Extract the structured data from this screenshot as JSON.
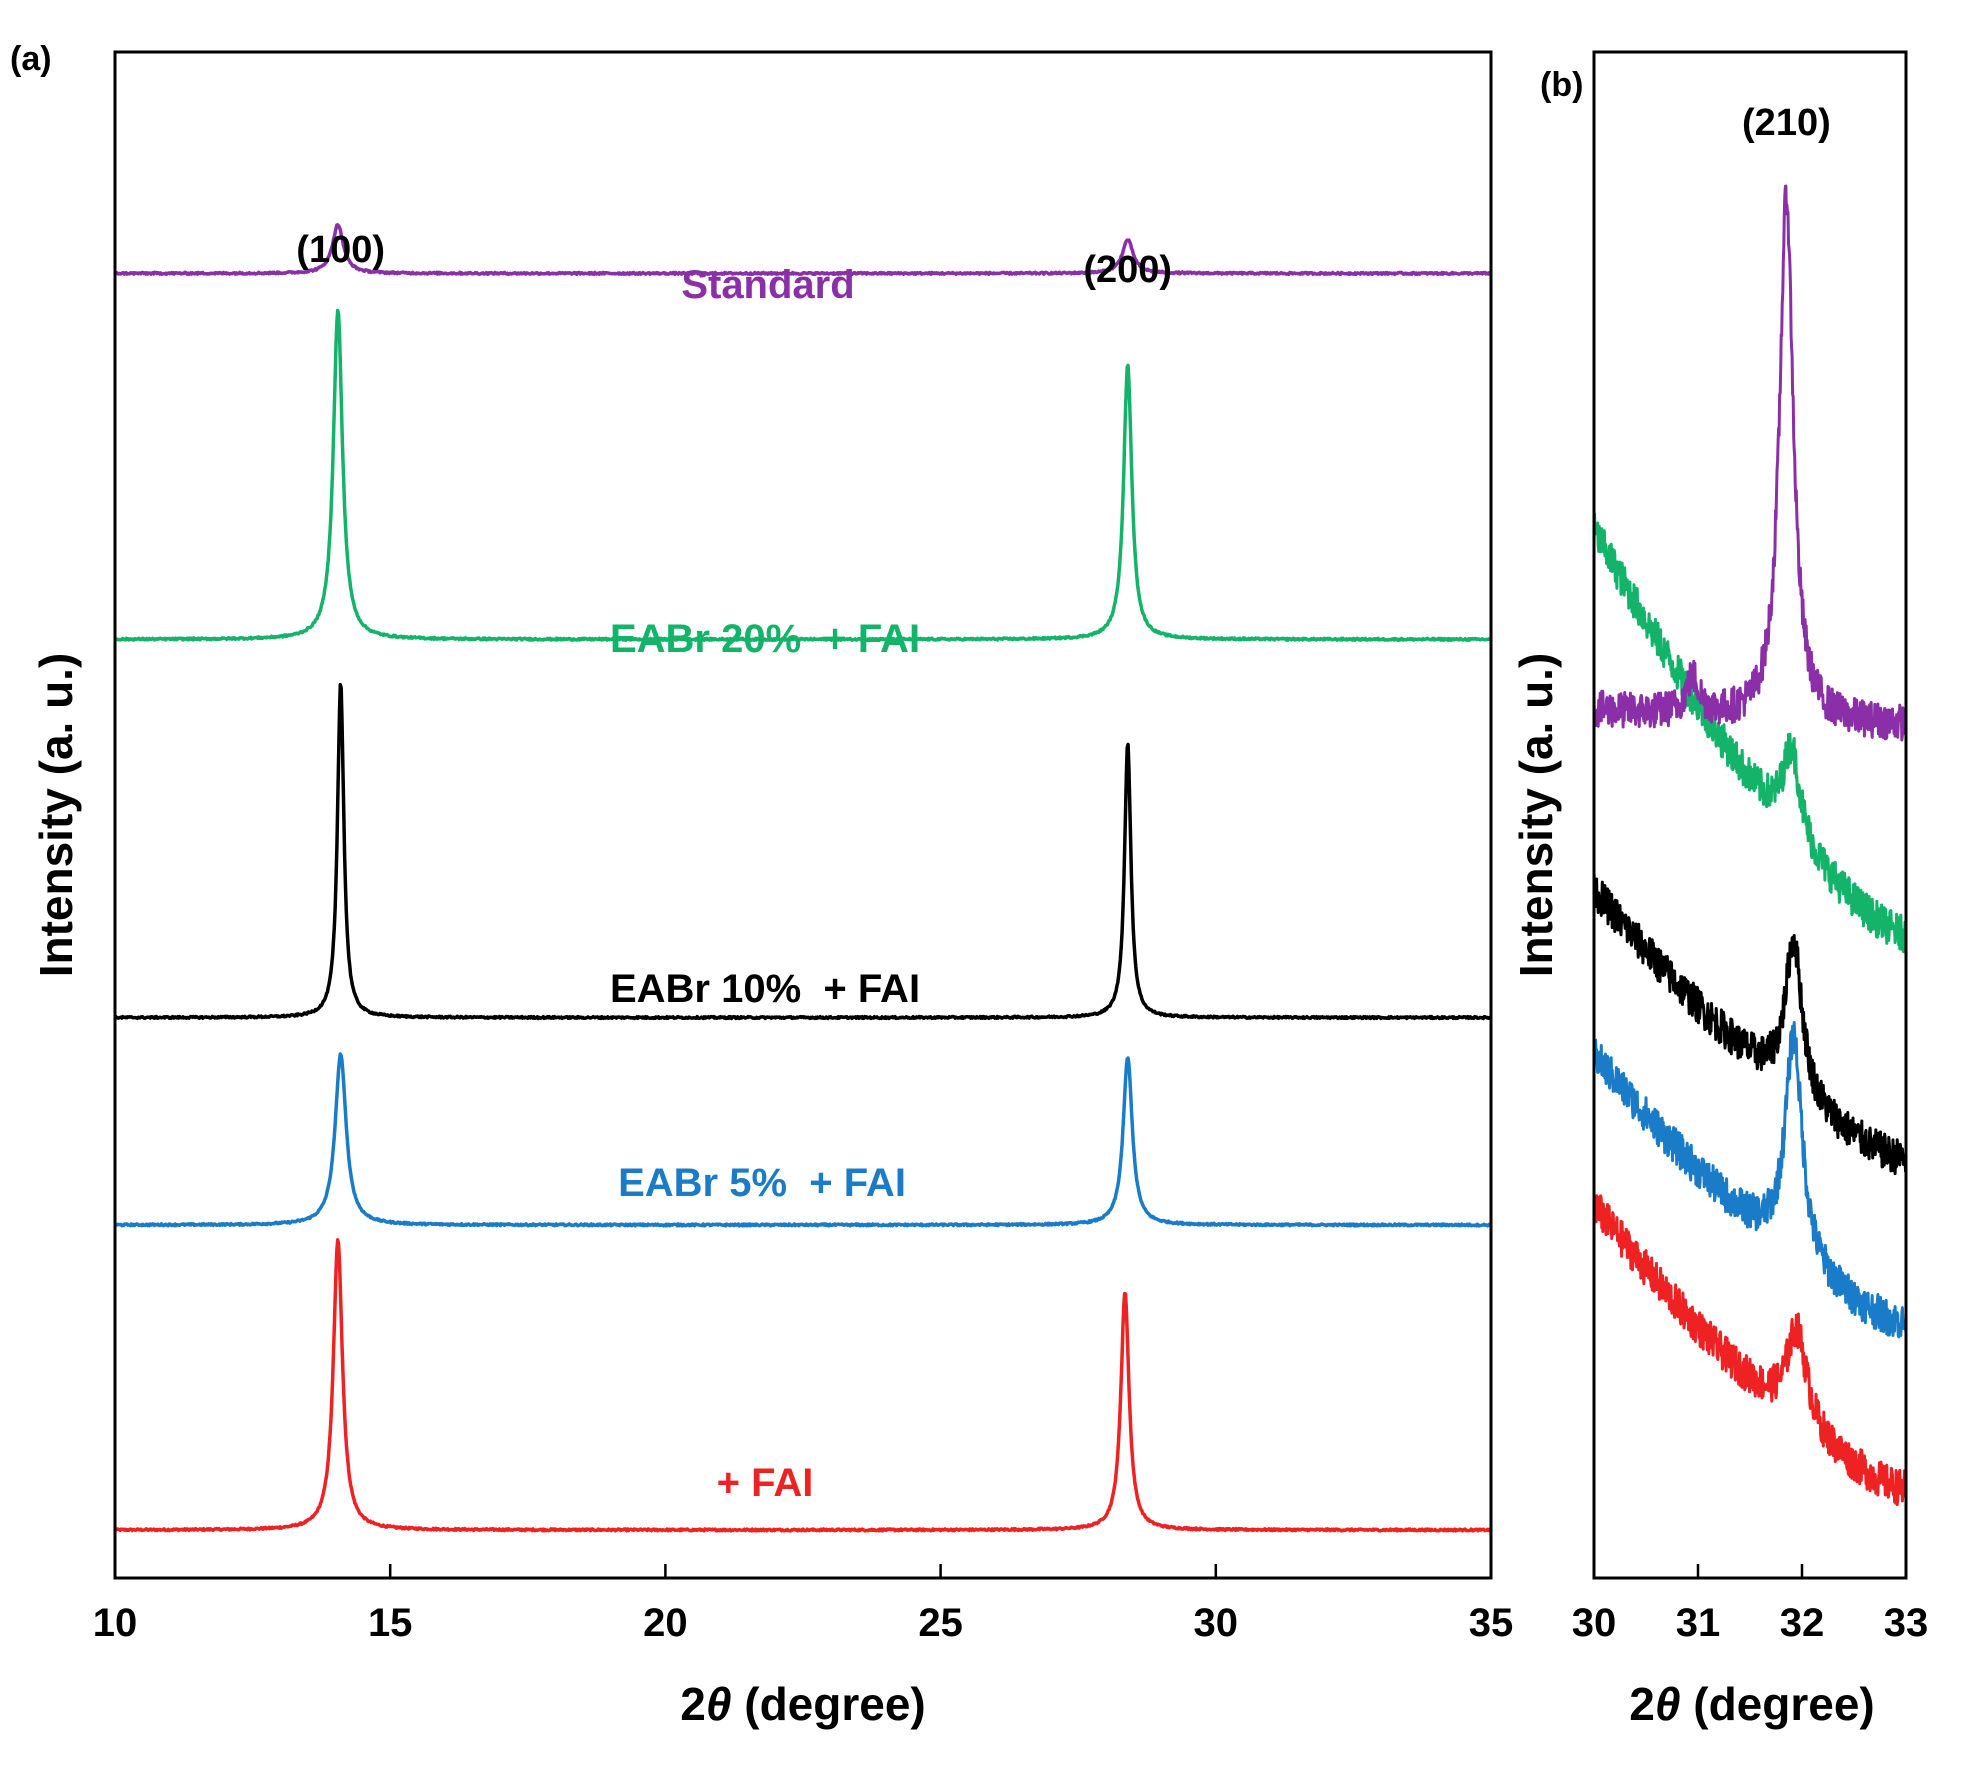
{
  "chart_data": [
    {
      "panel": "(a)",
      "type": "line",
      "xlabel": "2θ (degree)",
      "xlabel_prefix": "2",
      "xlabel_theta": "θ",
      "xlabel_suffix": " (degree)",
      "ylabel": "Intensity (a. u.)",
      "xlim": [
        10,
        35
      ],
      "xticks": [
        "10",
        "15",
        "20",
        "25",
        "30",
        "35"
      ],
      "peak_labels": [
        {
          "text": "(100)",
          "x": 14.1
        },
        {
          "text": "(200)",
          "x": 28.4
        }
      ],
      "series": [
        {
          "name": "+ FAI",
          "color": "#ee2222",
          "baseline": 0.0,
          "peaks": [
            {
              "x": 14.05,
              "height": 0.95,
              "width": 0.1
            },
            {
              "x": 28.35,
              "height": 0.78,
              "width": 0.09
            }
          ]
        },
        {
          "name": "EABr 5%  + FAI",
          "color": "#1a7cc8",
          "baseline": 1.0,
          "peaks": [
            {
              "x": 14.1,
              "height": 0.56,
              "width": 0.12
            },
            {
              "x": 28.4,
              "height": 0.55,
              "width": 0.1
            }
          ]
        },
        {
          "name": "EABr 10%  + FAI",
          "color": "#000000",
          "baseline": 1.68,
          "peaks": [
            {
              "x": 14.1,
              "height": 1.1,
              "width": 0.07
            },
            {
              "x": 28.4,
              "height": 0.9,
              "width": 0.07
            }
          ]
        },
        {
          "name": "EABr 20%  + FAI",
          "color": "#14b36a",
          "baseline": 2.92,
          "peaks": [
            {
              "x": 14.05,
              "height": 1.08,
              "width": 0.1
            },
            {
              "x": 28.4,
              "height": 0.9,
              "width": 0.09
            }
          ]
        },
        {
          "name": "Standard",
          "color": "#8b2fa8",
          "baseline": 4.12,
          "peaks": [
            {
              "x": 14.05,
              "height": 0.16,
              "width": 0.12
            },
            {
              "x": 28.4,
              "height": 0.11,
              "width": 0.12
            }
          ]
        }
      ]
    },
    {
      "panel": "(b)",
      "type": "line",
      "xlabel": "2θ (degree)",
      "xlabel_prefix": "2",
      "xlabel_theta": "θ",
      "xlabel_suffix": " (degree)",
      "ylabel": "Intensity (a. u.)",
      "xlim": [
        30,
        33
      ],
      "xticks": [
        "30",
        "31",
        "32",
        "33"
      ],
      "peak_labels": [
        {
          "text": "(210)",
          "x": 31.85
        }
      ],
      "series": [
        {
          "name": "+ FAI",
          "color": "#ee2222",
          "start": 0.95,
          "end": 0.0,
          "peak_x": 31.95,
          "peak_h": 0.32,
          "peak_w": 0.12
        },
        {
          "name": "EABr 5%",
          "color": "#1a7cc8",
          "start": 1.45,
          "end": 0.55,
          "peak_x": 31.92,
          "peak_h": 0.75,
          "peak_w": 0.1
        },
        {
          "name": "EABr 10%",
          "color": "#000000",
          "start": 2.0,
          "end": 1.1,
          "peak_x": 31.92,
          "peak_h": 0.52,
          "peak_w": 0.1
        },
        {
          "name": "EABr 20%",
          "color": "#14b36a",
          "start": 3.2,
          "end": 1.85,
          "peak_x": 31.9,
          "peak_h": 0.3,
          "peak_w": 0.1
        },
        {
          "name": "Standard",
          "color": "#8b2fa8",
          "start": 2.6,
          "end": 2.55,
          "peak_x": 31.85,
          "peak_h": 1.75,
          "peak_w": 0.08,
          "minor_x": 30.95,
          "minor_h": 0.12
        }
      ]
    }
  ]
}
